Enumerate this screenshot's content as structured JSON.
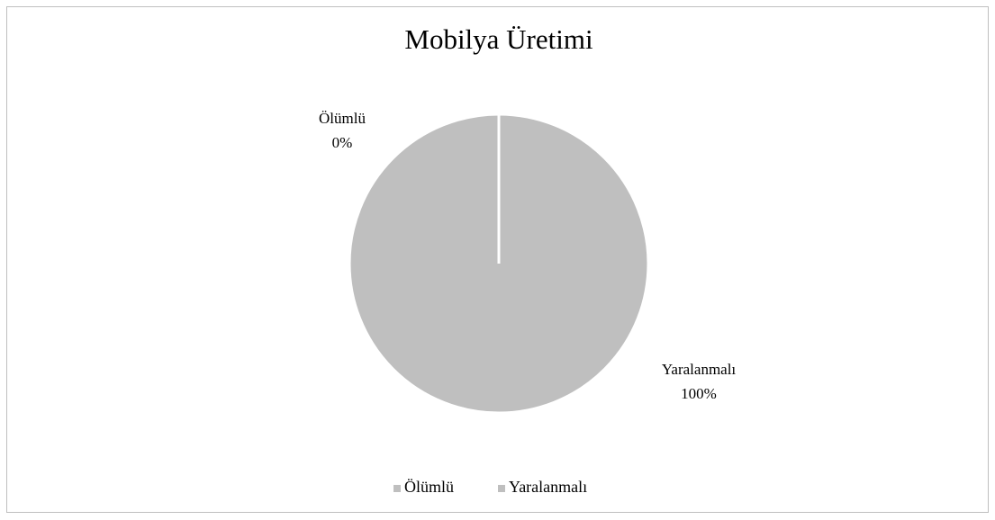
{
  "chart_data": {
    "type": "pie",
    "title": "Mobilya Üretimi",
    "categories": [
      "Ölümlü",
      "Yaralanmalı"
    ],
    "values": [
      0,
      100
    ],
    "value_labels": [
      "0%",
      "100%"
    ],
    "colors": [
      "#bfbfbf",
      "#bfbfbf"
    ],
    "legend": "bottom"
  }
}
